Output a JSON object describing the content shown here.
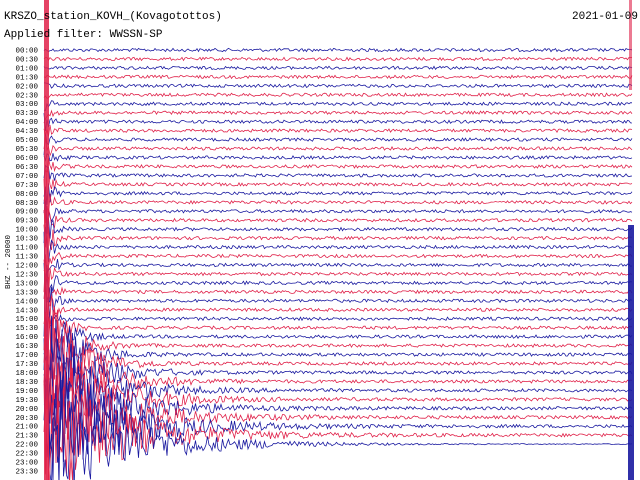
{
  "header": {
    "station": "KRSZO_station_KOVH_(Kovagotottos)",
    "date": "2021-01-09",
    "filter": "Applied filter: WWSSN-SP"
  },
  "y_axis_label": "BHZ -- 20000",
  "row_labels": [
    "00:00",
    "00:30",
    "01:00",
    "01:30",
    "02:00",
    "02:30",
    "03:00",
    "03:30",
    "04:00",
    "04:30",
    "05:00",
    "05:30",
    "06:00",
    "06:30",
    "07:00",
    "07:30",
    "08:00",
    "08:30",
    "09:00",
    "09:30",
    "10:00",
    "10:30",
    "11:00",
    "11:30",
    "12:00",
    "12:30",
    "13:00",
    "13:30",
    "14:00",
    "14:30",
    "15:00",
    "15:30",
    "16:00",
    "16:30",
    "17:00",
    "17:30",
    "18:00",
    "18:30",
    "19:00",
    "19:30",
    "20:00",
    "20:30",
    "21:00",
    "21:30",
    "22:00",
    "22:30",
    "23:00",
    "23:30"
  ]
}
